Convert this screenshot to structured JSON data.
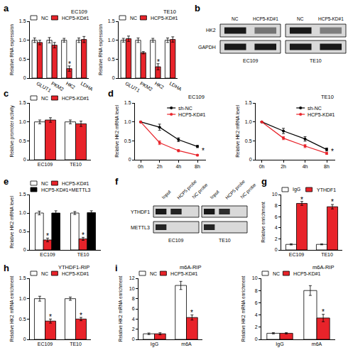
{
  "chart_data": [
    {
      "panel": "a",
      "type": "bar",
      "title": "EC109",
      "categories": [
        "GLUT1",
        "PKM2",
        "HK2",
        "LDHA"
      ],
      "series": [
        {
          "name": "NC",
          "color": "#ffffff",
          "values": [
            1,
            1,
            1,
            1
          ],
          "errors": [
            0.06,
            0.07,
            0.05,
            0.06
          ]
        },
        {
          "name": "HCP5-KD#1",
          "color": "#e8232a",
          "values": [
            0.94,
            0.87,
            0.25,
            1.02
          ],
          "errors": [
            0.06,
            0.07,
            0.07,
            0.08
          ]
        }
      ],
      "ylabel": "Relative RNA expression",
      "ylim": [
        0,
        1.5
      ],
      "yticks": [
        0,
        0.5,
        {
          "value": 1,
          "label": "1.0"
        },
        1.5
      ],
      "legend": "above",
      "annotations": [
        {
          "text": "*",
          "x": "HK2",
          "series": "HCP5-KD#1",
          "y": 0.36
        }
      ]
    },
    {
      "type": "bar",
      "title": "TE10",
      "categories": [
        "GLUT1",
        "PKM2",
        "HK2",
        "LDHA"
      ],
      "series": [
        {
          "name": "NC",
          "color": "#ffffff",
          "values": [
            1,
            1,
            1,
            1
          ],
          "errors": [
            0.05,
            0.06,
            0.05,
            0.06
          ]
        },
        {
          "name": "HCP5-KD#1",
          "color": "#e8232a",
          "values": [
            1.04,
            0.67,
            0.3,
            1.02
          ],
          "errors": [
            0.07,
            0.03,
            0.08,
            0.07
          ]
        }
      ],
      "ylabel": "Relative RNA expression",
      "ylim": [
        0,
        1.5
      ],
      "yticks": [
        0,
        0.5,
        {
          "value": 1,
          "label": "1.0"
        },
        1.5
      ],
      "legend": "above",
      "annotations": [
        {
          "text": "*",
          "x": "HK2",
          "series": "HCP5-KD#1",
          "y": 0.42
        }
      ]
    },
    {
      "panel": "b",
      "type": "blot",
      "groups": [
        "EC109",
        "TE10"
      ],
      "lanes": [
        "NC",
        "HCP5-KD#1"
      ],
      "rows": [
        {
          "name": "HK2",
          "intensity": [
            0.95,
            0.5,
            0.95,
            0.45
          ]
        },
        {
          "name": "GAPDH",
          "intensity": [
            0.95,
            0.95,
            0.95,
            0.95
          ]
        }
      ]
    },
    {
      "panel": "c",
      "type": "bar",
      "categories": [
        "EC109",
        "TE10"
      ],
      "series": [
        {
          "name": "NC",
          "color": "#ffffff",
          "values": [
            1,
            1
          ],
          "errors": [
            0.05,
            0.05
          ]
        },
        {
          "name": "HCP5-KD#1",
          "color": "#e8232a",
          "values": [
            1.05,
            0.95
          ],
          "errors": [
            0.06,
            0.07
          ]
        }
      ],
      "ylabel": "Relative promoter activity",
      "ylim": [
        0,
        1.5
      ],
      "yticks": [
        0,
        0.5,
        {
          "value": 1,
          "label": "1.0"
        },
        1.5
      ],
      "legend": "above"
    },
    {
      "panel": "d",
      "type": "line",
      "title": "EC109",
      "categories": [
        "0h",
        "2h",
        "4h",
        "8h"
      ],
      "marker": "circle",
      "series": [
        {
          "name": "sh-NC",
          "color": "#000000",
          "values": [
            1,
            0.86,
            0.53,
            0.35
          ],
          "errors": [
            0,
            0.08,
            0.05,
            0.03
          ]
        },
        {
          "name": "HCP5-KD#1",
          "color": "#e8232a",
          "values": [
            1,
            0.45,
            0.24,
            0.12
          ],
          "errors": [
            0,
            0.05,
            0.03,
            0.02
          ]
        }
      ],
      "ylabel": "Relative HK2 mRNA level",
      "ylim": [
        0,
        1.5
      ],
      "yticks": [
        0,
        0.5,
        {
          "value": 1,
          "label": "1.0"
        },
        1.5
      ],
      "legend": "upper right",
      "annotations": [
        {
          "text": "*",
          "x": "8h",
          "y": 0.24
        }
      ]
    },
    {
      "type": "line",
      "title": "TE10",
      "categories": [
        "0h",
        "2h",
        "4h",
        "8h"
      ],
      "marker": "circle",
      "series": [
        {
          "name": "sh-NC",
          "color": "#000000",
          "values": [
            1,
            0.76,
            0.55,
            0.27
          ],
          "errors": [
            0,
            0.07,
            0.06,
            0.04
          ]
        },
        {
          "name": "HCP5-KD#1",
          "color": "#e8232a",
          "values": [
            1,
            0.57,
            0.36,
            0.17
          ],
          "errors": [
            0,
            0.04,
            0.04,
            0.03
          ]
        }
      ],
      "ylabel": "Relative HK2 mRNA level",
      "ylim": [
        0,
        1.5
      ],
      "yticks": [
        0,
        0.5,
        {
          "value": 1,
          "label": "1.0"
        },
        1.5
      ],
      "legend": "upper right",
      "annotations": [
        {
          "text": "*",
          "x": "8h",
          "y": 0.22
        }
      ]
    },
    {
      "panel": "e",
      "type": "bar",
      "categories": [
        "EC109",
        "TE10"
      ],
      "series": [
        {
          "name": "NC",
          "color": "#ffffff",
          "values": [
            1,
            1
          ],
          "errors": [
            0.05,
            0.04
          ]
        },
        {
          "name": "HCP5-KD#1",
          "color": "#e8232a",
          "values": [
            0.27,
            0.3
          ],
          "errors": [
            0.05,
            0.04
          ]
        },
        {
          "name": "HCP5-KD#1+METTL3",
          "color": "#000000",
          "values": [
            1,
            1.01
          ],
          "errors": [
            0.06,
            0.05
          ]
        }
      ],
      "ylabel": "Relative HK2 mRNA level",
      "ylim": [
        0,
        1.5
      ],
      "yticks": [
        0,
        0.5,
        {
          "value": 1,
          "label": "1.0"
        },
        1.5
      ],
      "legend": "above",
      "annotations": [
        {
          "text": "*",
          "x": "EC109",
          "series": "HCP5-KD#1",
          "y": 0.37
        },
        {
          "text": "*",
          "x": "TE10",
          "series": "HCP5-KD#1",
          "y": 0.39
        }
      ]
    },
    {
      "panel": "f",
      "type": "blot",
      "groups": [
        "EC109",
        "TE10"
      ],
      "lanes": [
        "Input",
        "HCP5 probe",
        "NC probe"
      ],
      "rows": [
        {
          "name": "YTHDF1",
          "intensity": [
            0.95,
            0.9,
            0,
            0.95,
            0.85,
            0
          ]
        },
        {
          "name": "METTL3",
          "intensity": [
            0.9,
            0,
            0,
            0.9,
            0,
            0
          ]
        }
      ]
    },
    {
      "panel": "g",
      "type": "bar",
      "categories": [
        "EC109",
        "TE10"
      ],
      "series": [
        {
          "name": "IgG",
          "color": "#ffffff",
          "values": [
            1,
            1
          ],
          "errors": [
            0.1,
            0.08
          ]
        },
        {
          "name": "YTHDF1",
          "color": "#e8232a",
          "values": [
            8.4,
            7.8
          ],
          "errors": [
            0.35,
            0.4
          ]
        }
      ],
      "ylabel": "Relative enrichment",
      "ylim": [
        0,
        10
      ],
      "yticks": [
        0,
        2,
        4,
        6,
        8,
        10
      ],
      "legend": "above",
      "annotations": [
        {
          "text": "*",
          "x": "EC109",
          "series": "YTHDF1",
          "y": 9.1
        },
        {
          "text": "*",
          "x": "TE10",
          "series": "YTHDF1",
          "y": 8.6
        }
      ]
    },
    {
      "panel": "h",
      "type": "bar",
      "title": "YTHDF1-RIP",
      "categories": [
        "EC109",
        "TE10"
      ],
      "series": [
        {
          "name": "NC",
          "color": "#ffffff",
          "values": [
            1,
            1
          ],
          "errors": [
            0.06,
            0.04
          ]
        },
        {
          "name": "HCP5-KD#1",
          "color": "#e8232a",
          "values": [
            0.45,
            0.5
          ],
          "errors": [
            0.05,
            0.04
          ]
        }
      ],
      "ylabel": "Relative HK2 mRNA enrichment",
      "ylim": [
        0,
        1.5
      ],
      "yticks": [
        0,
        0.5,
        {
          "value": 1,
          "label": "1.0"
        },
        1.5
      ],
      "legend": "above",
      "annotations": [
        {
          "text": "*",
          "x": "EC109",
          "series": "HCP5-KD#1",
          "y": 0.55
        },
        {
          "text": "*",
          "x": "TE10",
          "series": "HCP5-KD#1",
          "y": 0.59
        }
      ]
    },
    {
      "panel": "i",
      "type": "bar",
      "title": "m6A-RIP",
      "categories": [
        "IgG",
        "m6A"
      ],
      "series": [
        {
          "name": "NC",
          "color": "#ffffff",
          "values": [
            1.1,
            10.6
          ],
          "errors": [
            0.15,
            0.8
          ]
        },
        {
          "name": "HCP5-KD#1",
          "color": "#e8232a",
          "values": [
            1.1,
            4.3
          ],
          "errors": [
            0.2,
            0.5
          ]
        }
      ],
      "ylabel": "Relative HK2 mRNA enrichment",
      "ylim": [
        0,
        12
      ],
      "yticks": [
        0,
        2,
        4,
        6,
        8,
        10,
        12
      ],
      "legend": "above",
      "annotations": [
        {
          "text": "*",
          "x": "m6A",
          "series": "HCP5-KD#1",
          "y": 5.2
        }
      ]
    },
    {
      "type": "bar",
      "title": "m6A-RIP",
      "categories": [
        "IgG",
        "m6A"
      ],
      "series": [
        {
          "name": "NC",
          "color": "#ffffff",
          "values": [
            1,
            8.0
          ],
          "errors": [
            0.1,
            0.8
          ]
        },
        {
          "name": "HCP5-KD#1",
          "color": "#e8232a",
          "values": [
            1,
            3.5
          ],
          "errors": [
            0.1,
            0.6
          ]
        }
      ],
      "ylabel": "Relative HK2 mRNA enrichment",
      "ylim": [
        0,
        10
      ],
      "yticks": [
        0,
        2,
        4,
        6,
        8,
        10
      ],
      "legend": "above",
      "annotations": [
        {
          "text": "*",
          "x": "m6A",
          "series": "HCP5-KD#1",
          "y": 4.5
        }
      ]
    }
  ]
}
